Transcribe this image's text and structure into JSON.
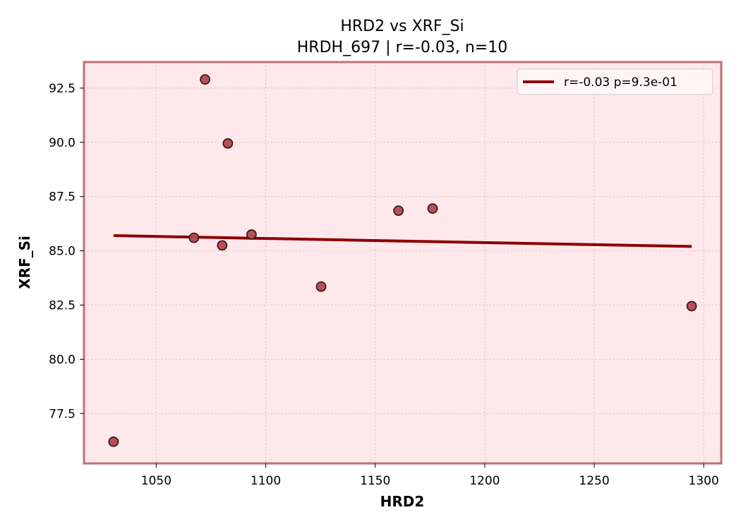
{
  "chart_data": {
    "type": "scatter",
    "title": "HRD2 vs XRF_Si",
    "subtitle": "HRDH_697 | r=-0.03, n=10",
    "xlabel": "HRD2",
    "ylabel": "XRF_Si",
    "xlim": [
      1017,
      1308
    ],
    "ylim": [
      75.2,
      93.7
    ],
    "xticks": [
      1050,
      1100,
      1150,
      1200,
      1250,
      1300
    ],
    "yticks": [
      77.5,
      80.0,
      82.5,
      85.0,
      87.5,
      90.0,
      92.5
    ],
    "grid": true,
    "legend_position": "top-right",
    "points": [
      {
        "x": 1030.5,
        "y": 76.2
      },
      {
        "x": 1067.2,
        "y": 85.6
      },
      {
        "x": 1072.3,
        "y": 92.9
      },
      {
        "x": 1080.1,
        "y": 85.25
      },
      {
        "x": 1082.7,
        "y": 89.95
      },
      {
        "x": 1093.5,
        "y": 85.75
      },
      {
        "x": 1125.3,
        "y": 83.35
      },
      {
        "x": 1160.6,
        "y": 86.85
      },
      {
        "x": 1176.2,
        "y": 86.95
      },
      {
        "x": 1294.5,
        "y": 82.45
      }
    ],
    "fit_line": {
      "label": "r=-0.03  p=9.3e-01",
      "x": [
        1030.5,
        1294.5
      ],
      "y": [
        85.7,
        85.2
      ]
    },
    "colors": {
      "background": "#ffe8ec",
      "frame": "#c07070",
      "point_fill": "#b5474f",
      "point_edge": "#3a1a1a",
      "fit_line": "#8b0000",
      "grid": "#d9c3c7"
    }
  }
}
